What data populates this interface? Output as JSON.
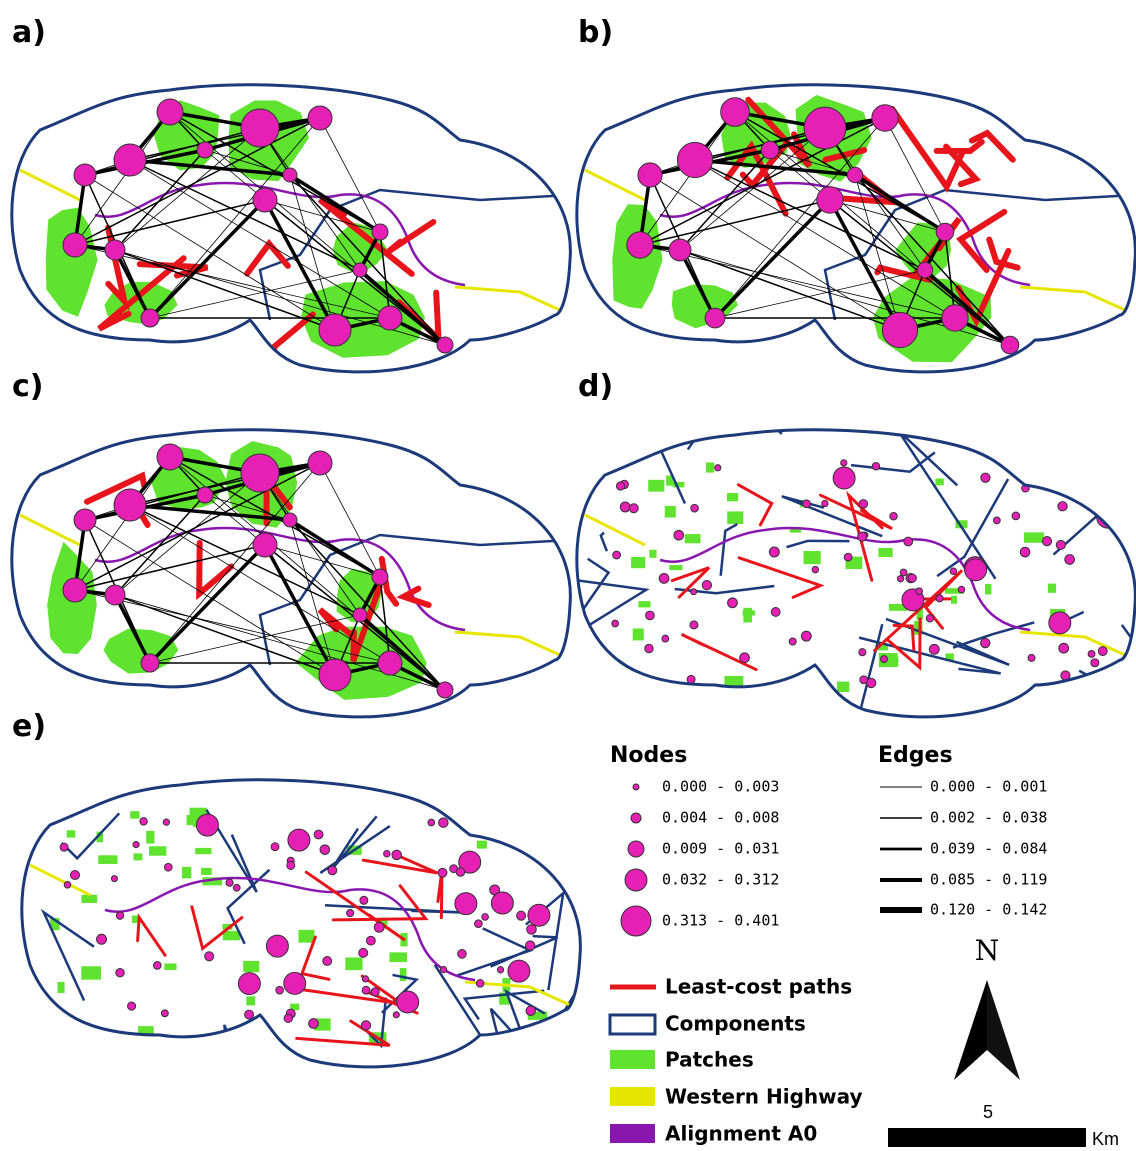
{
  "panels": [
    "a)",
    "b)",
    "c)",
    "d)",
    "e)"
  ],
  "legend": {
    "nodes": {
      "title": "Nodes",
      "items": [
        "0.000 - 0.003",
        "0.004 - 0.008",
        "0.009 - 0.031",
        "0.032 - 0.312",
        "0.313 - 0.401"
      ]
    },
    "edges": {
      "title": "Edges",
      "items": [
        "0.000 - 0.001",
        "0.002 - 0.038",
        "0.039 - 0.084",
        "0.085 - 0.119",
        "0.120 - 0.142"
      ]
    },
    "layers": [
      "Least-cost paths",
      "Components",
      "Patches",
      "Western Highway",
      "Alignment A0"
    ]
  },
  "north": "N",
  "scale_bar": {
    "value": 5,
    "unit": "Km"
  }
}
